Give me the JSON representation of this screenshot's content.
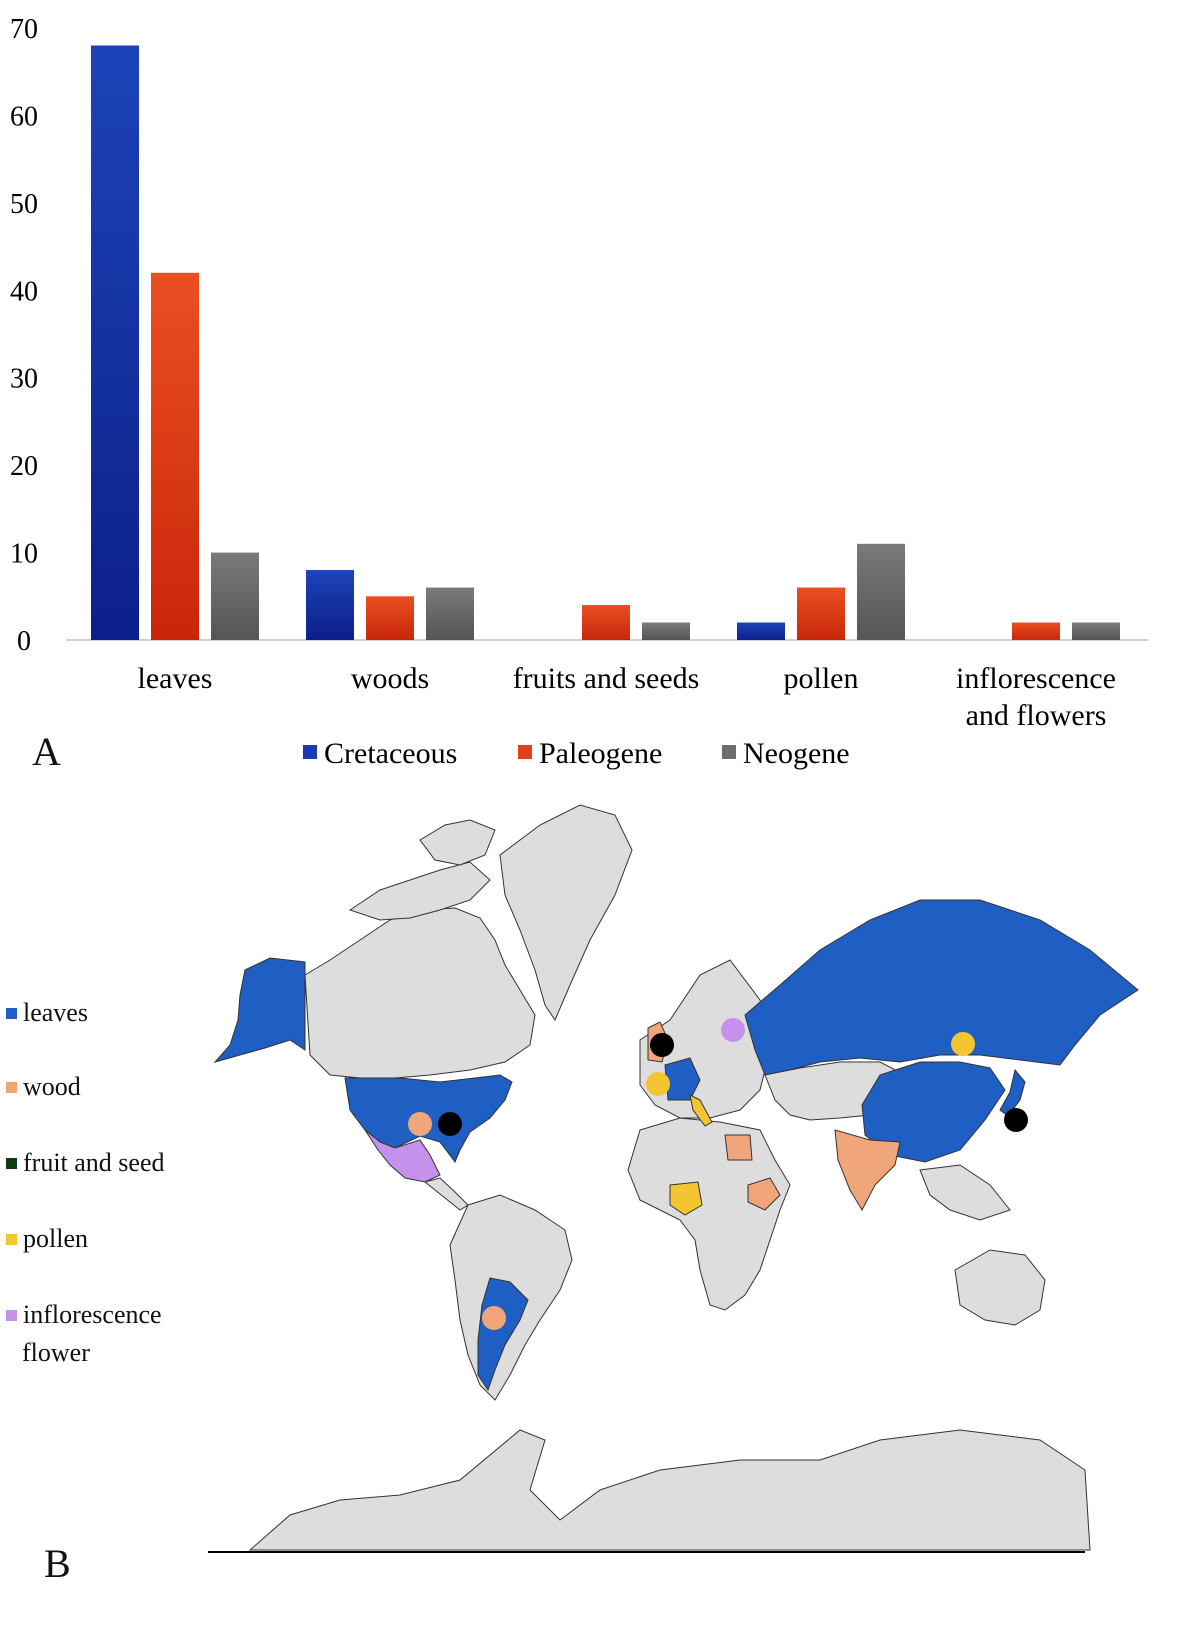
{
  "chart_data": {
    "type": "bar",
    "categories": [
      "leaves",
      "woods",
      "fruits and seeds",
      "pollen",
      "inflorescence and flowers"
    ],
    "category_lines": [
      [
        "leaves"
      ],
      [
        "woods"
      ],
      [
        "fruits and seeds"
      ],
      [
        "pollen"
      ],
      [
        "inflorescence",
        "and flowers"
      ]
    ],
    "series": [
      {
        "name": "Cretaceous",
        "values": [
          68,
          8,
          0,
          2,
          0
        ],
        "color": "#1a3bb0"
      },
      {
        "name": "Paleogene",
        "values": [
          42,
          5,
          4,
          6,
          2
        ],
        "color": "#e0401a"
      },
      {
        "name": "Neogene",
        "values": [
          10,
          6,
          2,
          11,
          2
        ],
        "color": "#6e6e6e"
      }
    ],
    "ylim": [
      0,
      70
    ],
    "yticks": [
      "0",
      "10",
      "20",
      "30",
      "40",
      "50",
      "60",
      "70"
    ],
    "grid": false,
    "legend_position": "bottom",
    "panel_label": "A"
  },
  "map": {
    "panel_label": "B",
    "legend": [
      {
        "label": "leaves",
        "color": "#1f5fc4"
      },
      {
        "label": "wood",
        "color": "#f0a67a"
      },
      {
        "label": "fruit and seed",
        "color": "#0e3a12"
      },
      {
        "label": "pollen",
        "color": "#f2c531"
      },
      {
        "label": "inflorescence",
        "label2": "flower",
        "color": "#c691ec"
      }
    ],
    "colors": {
      "land": "#dddddd",
      "leaves": "#1f5fc4",
      "wood": "#f0a67a",
      "pollen": "#f2c531",
      "flower": "#c691ec",
      "black_marker": "#000000"
    }
  }
}
